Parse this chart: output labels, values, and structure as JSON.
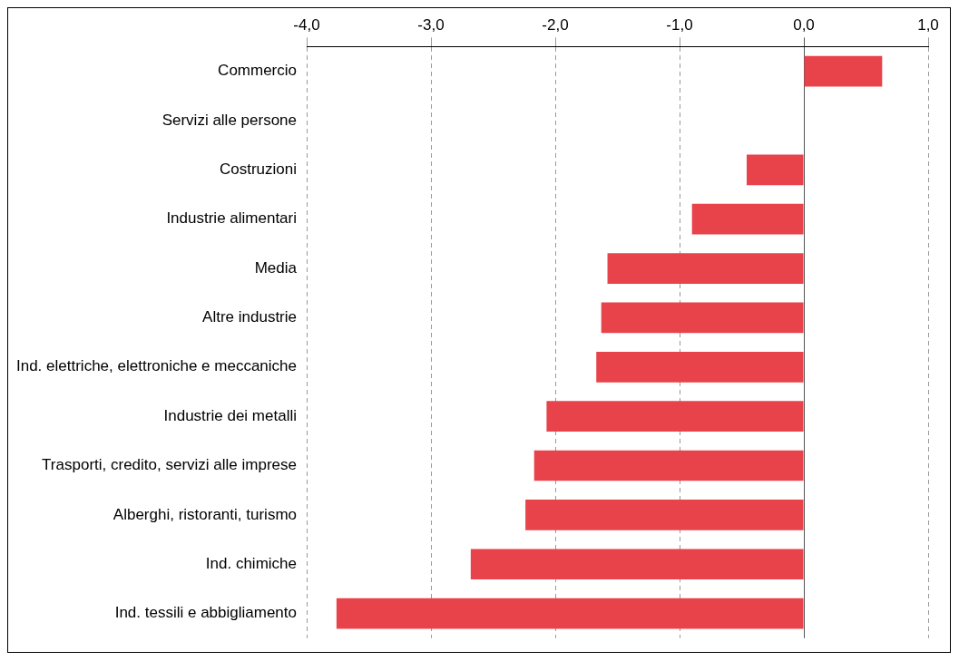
{
  "chart_data": {
    "type": "bar",
    "orientation": "horizontal",
    "categories": [
      "Commercio",
      "Servizi alle persone",
      "Costruzioni",
      "Industrie alimentari",
      "Media",
      "Altre industrie",
      "Ind. elettriche, elettroniche e meccaniche",
      "Industrie dei metalli",
      "Trasporti, credito, servizi alle imprese",
      "Alberghi, ristoranti, turismo",
      "Ind. chimiche",
      "Ind. tessili e abbigliamento"
    ],
    "values": [
      0.63,
      0,
      -0.46,
      -0.9,
      -1.58,
      -1.63,
      -1.67,
      -2.07,
      -2.17,
      -2.24,
      -2.68,
      -3.76
    ],
    "color": "#e8424a",
    "xlim": [
      -4,
      1
    ],
    "xticks": [
      {
        "value": -4,
        "label": "-4,0"
      },
      {
        "value": -3,
        "label": "-3,0"
      },
      {
        "value": -2,
        "label": "-2,0"
      },
      {
        "value": -1,
        "label": "-1,0"
      },
      {
        "value": 0,
        "label": "0,0"
      },
      {
        "value": 1,
        "label": "1,0"
      }
    ],
    "grid": "x",
    "legend": false
  }
}
